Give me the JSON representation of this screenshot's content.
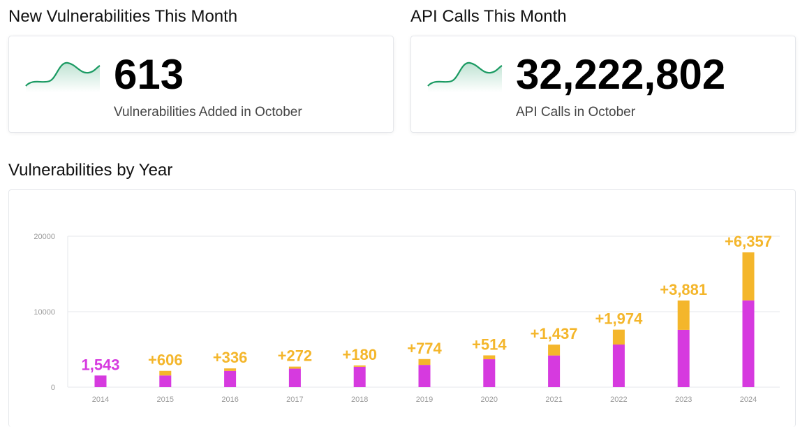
{
  "colors": {
    "existing": "#d63adf",
    "added": "#f4b62b",
    "spark": "#1a9a62",
    "grid": "#e5e7eb"
  },
  "icons": {
    "sparkline": "sparkline-icon"
  },
  "stats": [
    {
      "title": "New Vulnerabilities This Month",
      "value": "613",
      "label": "Vulnerabilities Added in October"
    },
    {
      "title": "API Calls This Month",
      "value": "32,222,802",
      "label": "API Calls in October"
    }
  ],
  "chart_section": {
    "title": "Vulnerabilities by Year"
  },
  "chart_data": {
    "type": "bar",
    "stacked": true,
    "categories": [
      "2014",
      "2015",
      "2016",
      "2017",
      "2018",
      "2019",
      "2020",
      "2021",
      "2022",
      "2023",
      "2024"
    ],
    "series": [
      {
        "values": [
          1543,
          1550,
          2150,
          2450,
          2700,
          2950,
          3700,
          4200,
          5650,
          7600,
          11500
        ]
      },
      {
        "values": [
          0,
          606,
          336,
          272,
          180,
          774,
          514,
          1437,
          1974,
          3881,
          6357
        ]
      }
    ],
    "data_labels": [
      "1,543",
      "+606",
      "+336",
      "+272",
      "+180",
      "+774",
      "+514",
      "+1,437",
      "+1,974",
      "+3,881",
      "+6,357"
    ],
    "ylim": [
      0,
      20000
    ],
    "yticks": [
      "0",
      "10000",
      "20000"
    ],
    "grid": true
  }
}
